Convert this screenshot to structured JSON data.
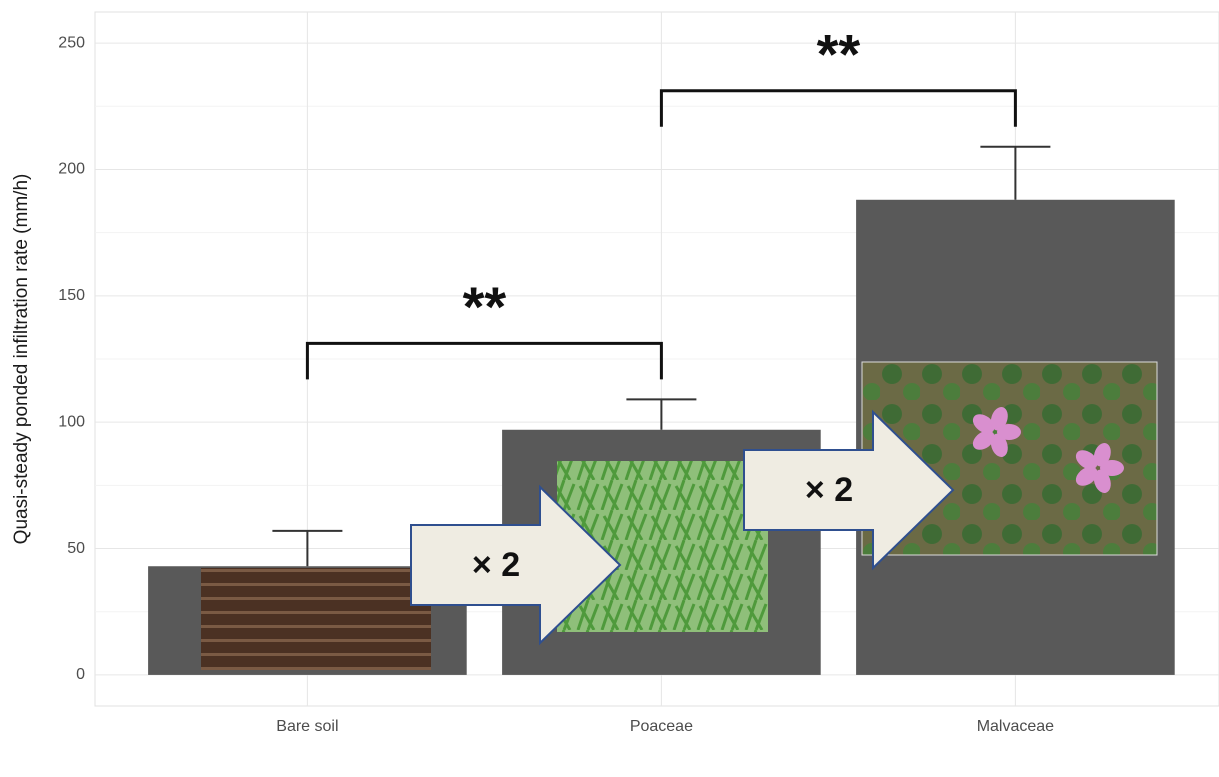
{
  "chart_data": {
    "type": "bar",
    "y_label": "Quasi-steady ponded infiltration rate (mm/h)",
    "categories": [
      "Bare soil",
      "Poaceae",
      "Malvaceae"
    ],
    "values": [
      43,
      97,
      188
    ],
    "errors": [
      14,
      12,
      21
    ],
    "color": "#595959",
    "ylim": [
      -12.3,
      262.3
    ],
    "yticks": [
      0,
      50,
      100,
      150,
      200,
      250
    ],
    "grid": true,
    "significance": [
      "**",
      "**"
    ],
    "ratio_labels": [
      "× 2",
      "× 2"
    ]
  }
}
